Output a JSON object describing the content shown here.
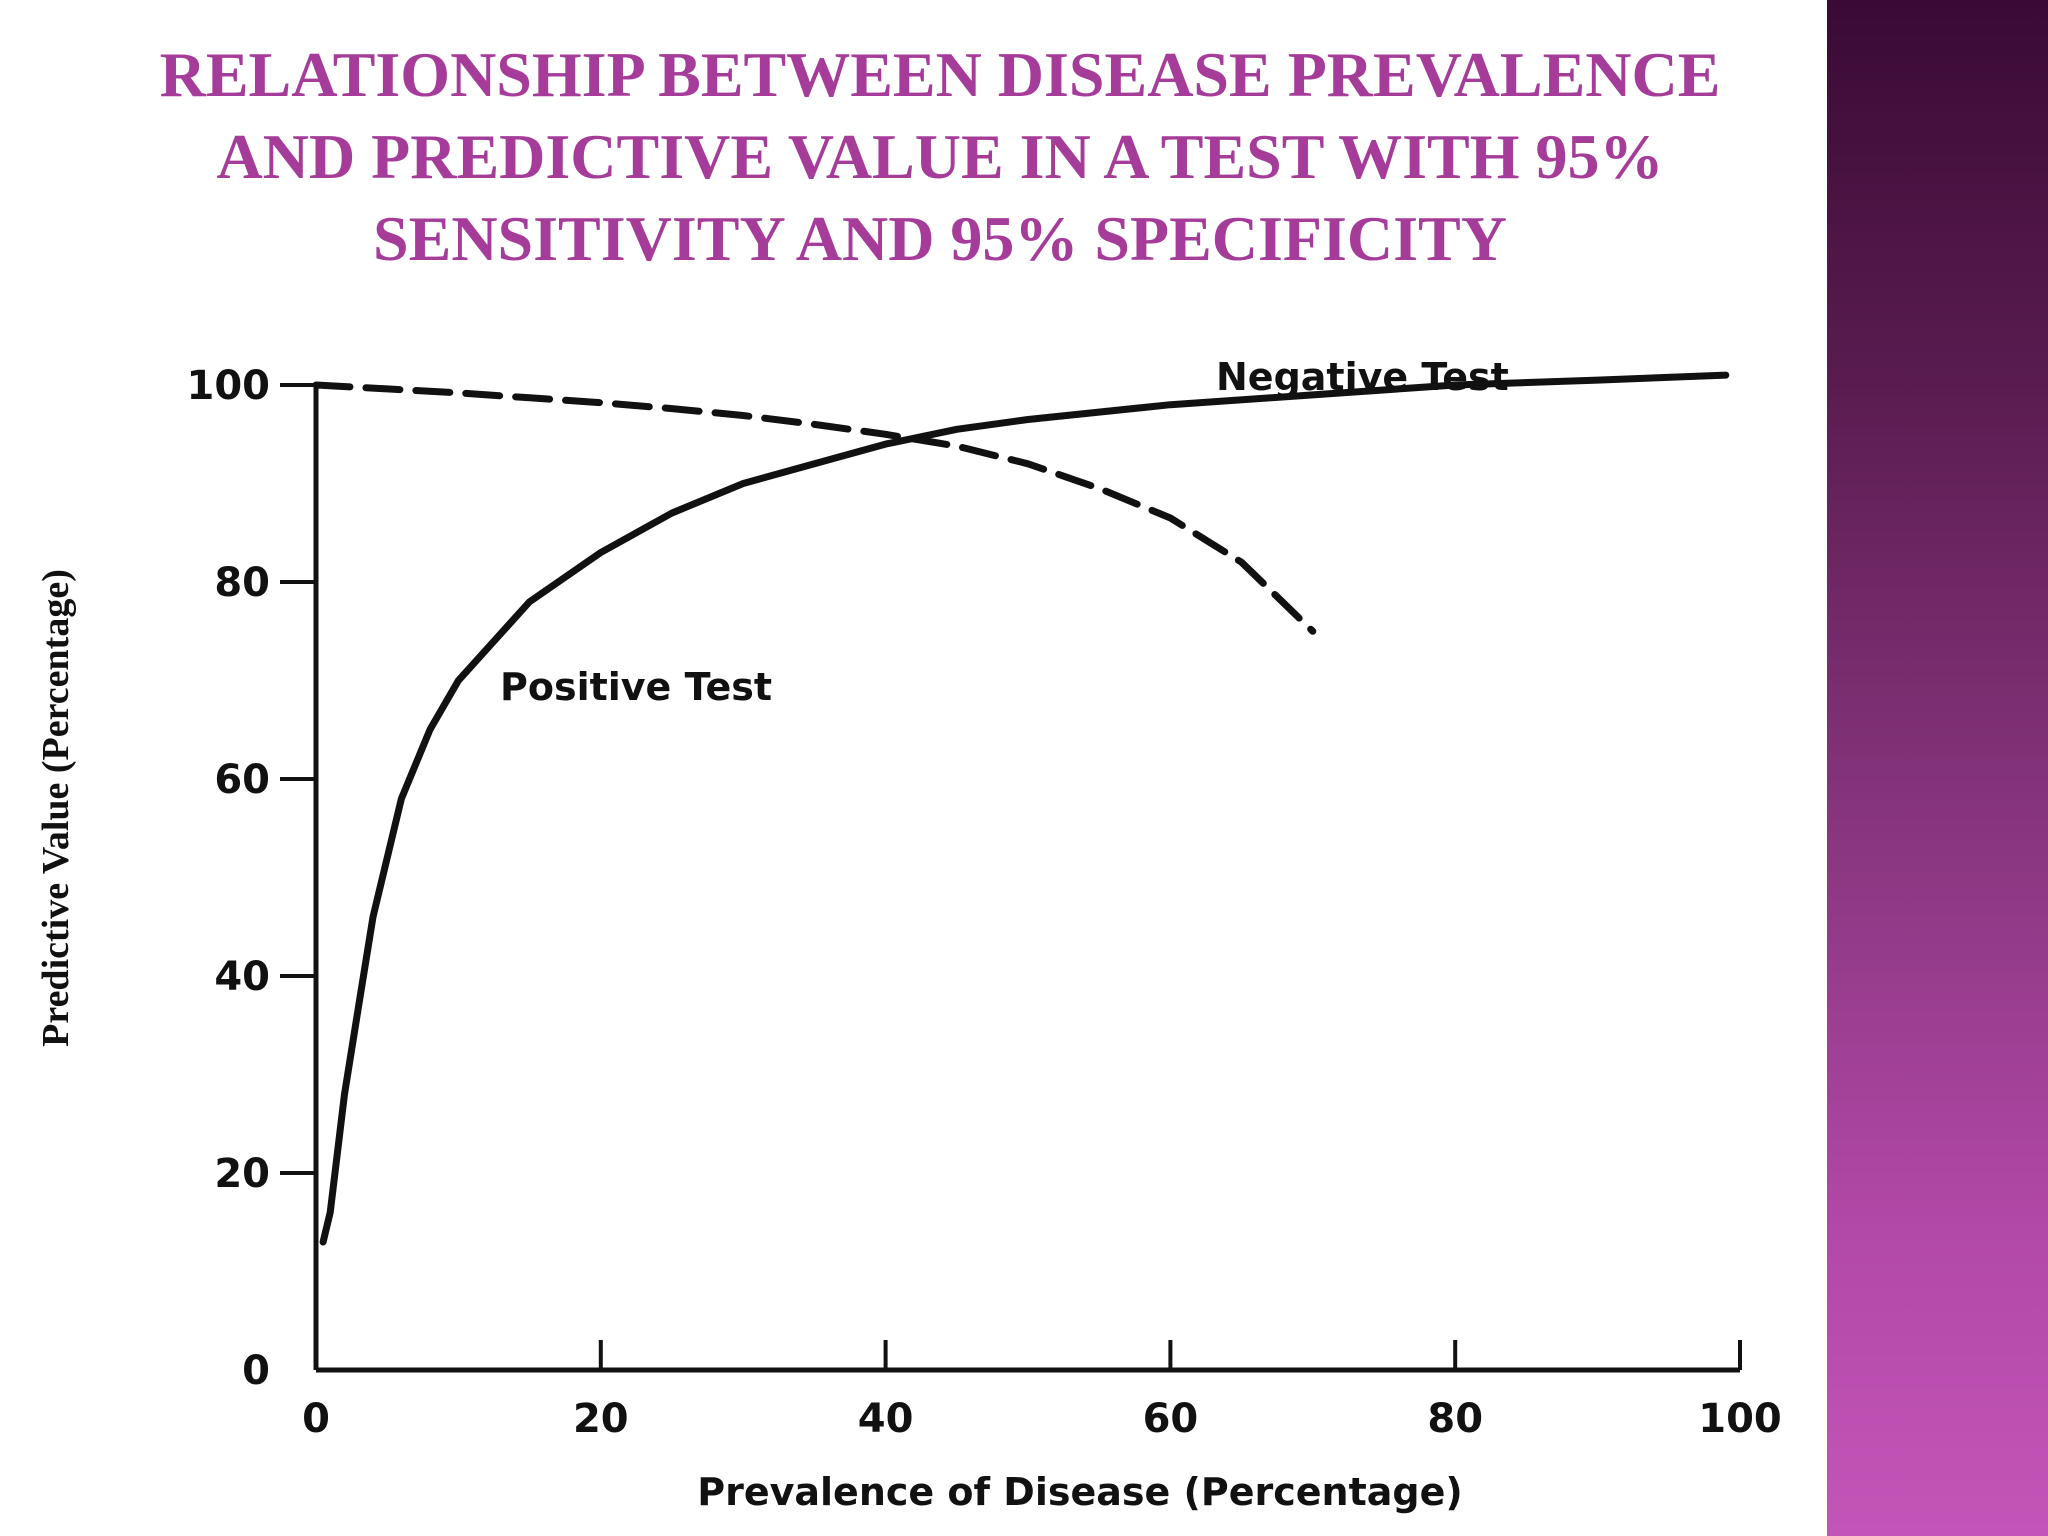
{
  "slide": {
    "title": "RELATIONSHIP BETWEEN DISEASE PREVALENCE\nAND PREDICTIVE VALUE IN A TEST WITH 95%\nSENSITIVITY AND 95% SPECIFICITY",
    "title_color": "#a63c9a",
    "accent_bar_colors": [
      "#3a0a34",
      "#c455b8"
    ]
  },
  "chart_data": {
    "type": "line",
    "title": "Relationship between disease prevalence and predictive value in a test with 95% sensitivity and 95% specificity",
    "xlabel": "Prevalence of Disease (Percentage)",
    "ylabel": "Predictive Value (Percentage)",
    "xlim": [
      0,
      100
    ],
    "ylim": [
      0,
      100
    ],
    "xticks": [
      0,
      20,
      40,
      60,
      80,
      100
    ],
    "yticks": [
      0,
      20,
      40,
      60,
      80,
      100
    ],
    "grid": false,
    "series": [
      {
        "name": "Positive Test",
        "style": "solid",
        "x": [
          0.5,
          1,
          2,
          3,
          4,
          6,
          8,
          10,
          15,
          20,
          25,
          30,
          35,
          40,
          45,
          50,
          60,
          70,
          80,
          90,
          99
        ],
        "y": [
          13,
          16,
          28,
          37,
          46,
          58,
          65,
          70,
          78,
          83,
          87,
          90,
          92,
          94,
          95.5,
          96.5,
          98,
          99,
          100,
          100.5,
          101
        ]
      },
      {
        "name": "Negative Test",
        "style": "dashed",
        "x": [
          0,
          5,
          10,
          15,
          20,
          25,
          30,
          35,
          40,
          45,
          50,
          55,
          60,
          65,
          70
        ],
        "y": [
          100,
          99.6,
          99.2,
          98.7,
          98.2,
          97.6,
          96.9,
          96,
          95,
          93.8,
          92,
          89.5,
          86.5,
          82,
          75
        ]
      }
    ]
  }
}
